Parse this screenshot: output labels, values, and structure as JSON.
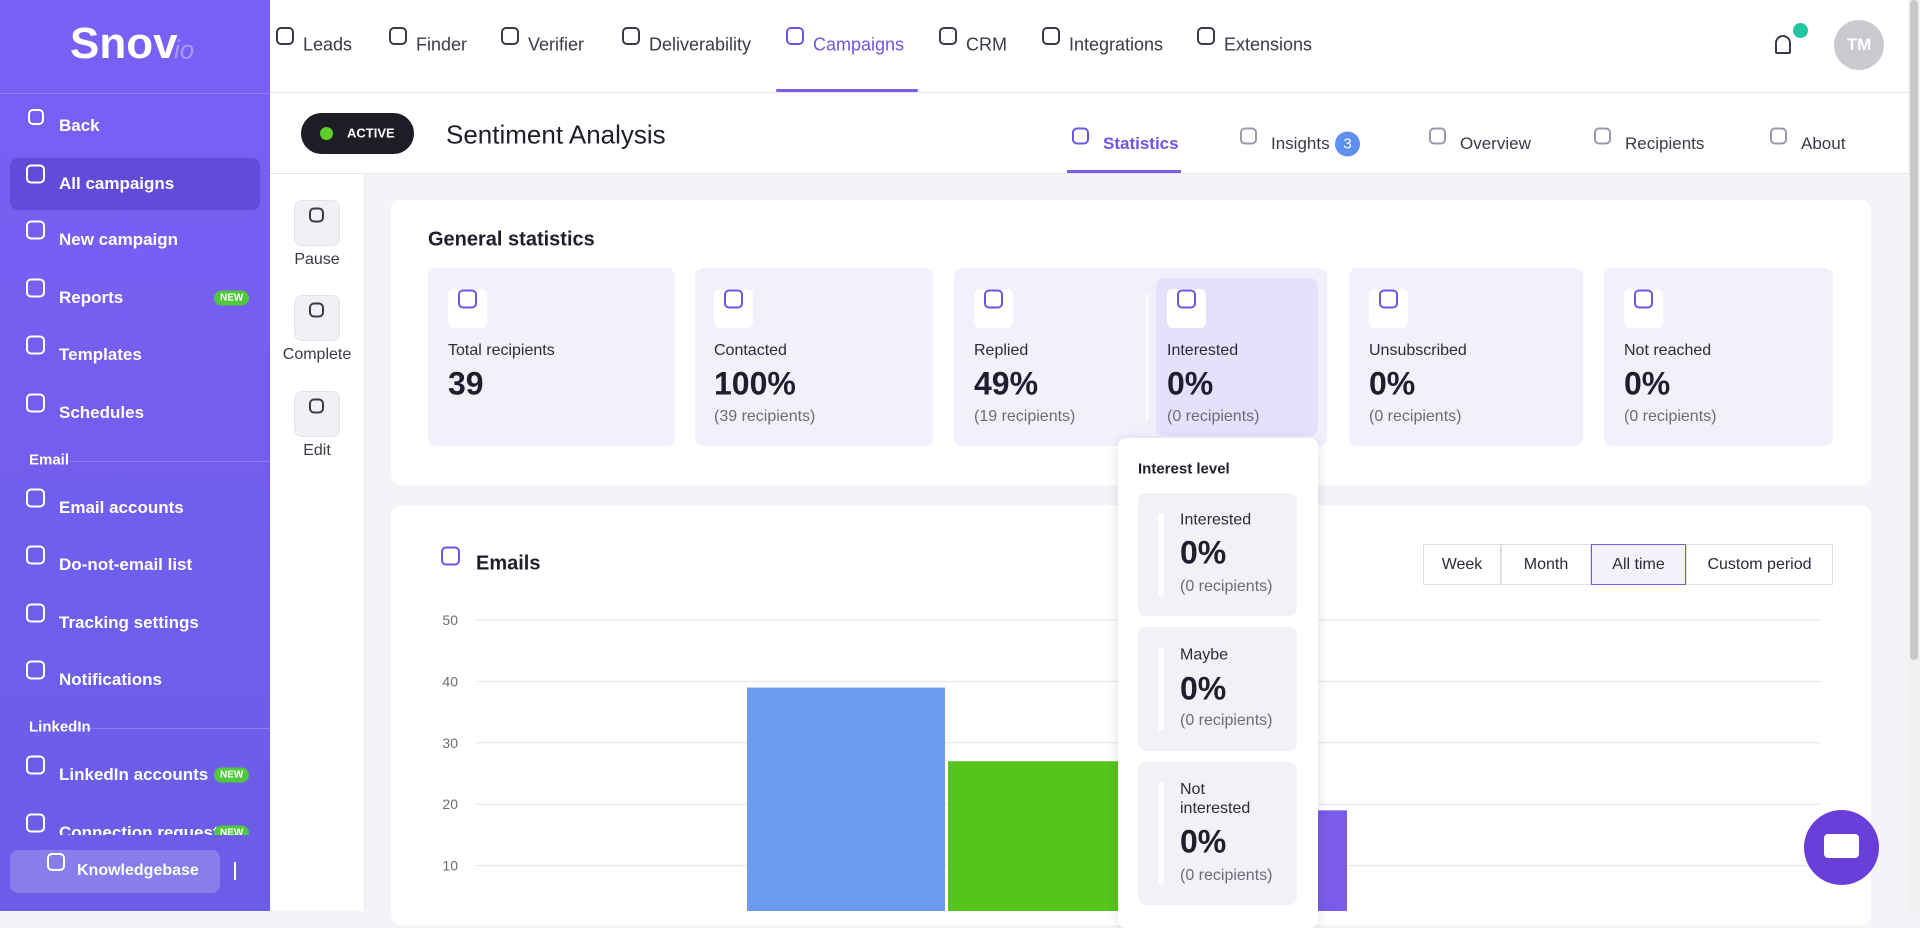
{
  "logo": {
    "main": "Snov",
    "suffix": "io"
  },
  "nav": [
    {
      "label": "Leads"
    },
    {
      "label": "Finder"
    },
    {
      "label": "Verifier"
    },
    {
      "label": "Deliverability"
    },
    {
      "label": "Campaigns",
      "active": true
    },
    {
      "label": "CRM"
    },
    {
      "label": "Integrations"
    },
    {
      "label": "Extensions"
    }
  ],
  "user": {
    "initials": "TM"
  },
  "sidebar": {
    "back": "Back",
    "items": [
      {
        "label": "All campaigns",
        "active": true
      },
      {
        "label": "New campaign"
      },
      {
        "label": "Reports",
        "badge": "NEW"
      },
      {
        "label": "Templates"
      },
      {
        "label": "Schedules"
      },
      {
        "section": "Email"
      },
      {
        "label": "Email accounts"
      },
      {
        "label": "Do-not-email list"
      },
      {
        "label": "Tracking settings"
      },
      {
        "label": "Notifications"
      },
      {
        "section": "LinkedIn"
      },
      {
        "label": "LinkedIn accounts",
        "badge": "NEW"
      },
      {
        "label": "Connection requests",
        "badge": "NEW"
      }
    ],
    "knowledgebase": "Knowledgebase"
  },
  "campaign": {
    "status": "ACTIVE",
    "name": "Sentiment Analysis"
  },
  "tabs": [
    {
      "label": "Statistics",
      "active": true
    },
    {
      "label": "Insights",
      "badge": "3"
    },
    {
      "label": "Overview"
    },
    {
      "label": "Recipients"
    },
    {
      "label": "About"
    }
  ],
  "actions": [
    "Pause",
    "Complete",
    "Edit"
  ],
  "general": {
    "title": "General statistics",
    "stats": [
      {
        "label": "Total recipients",
        "value": "39"
      },
      {
        "label": "Contacted",
        "value": "100%",
        "sub": "(39 recipients)"
      },
      {
        "label": "Replied",
        "value": "49%",
        "sub": "(19 recipients)"
      },
      {
        "label": "Interested",
        "value": "0%",
        "sub": "(0 recipients)"
      },
      {
        "label": "Unsubscribed",
        "value": "0%",
        "sub": "(0 recipients)"
      },
      {
        "label": "Not reached",
        "value": "0%",
        "sub": "(0 recipients)"
      }
    ]
  },
  "interest_popover": {
    "title": "Interest level",
    "levels": [
      {
        "label": "Interested",
        "value": "0%",
        "sub": "(0 recipients)"
      },
      {
        "label": "Maybe",
        "value": "0%",
        "sub": "(0 recipients)"
      },
      {
        "label": "Not interested",
        "value": "0%",
        "sub": "(0 recipients)"
      }
    ]
  },
  "emails": {
    "title": "Emails",
    "periods": [
      {
        "label": "Week"
      },
      {
        "label": "Month"
      },
      {
        "label": "All time",
        "active": true
      },
      {
        "label": "Custom period"
      }
    ],
    "chart": {
      "type": "bar",
      "ylim": [
        0,
        50
      ],
      "yticks": [
        10,
        20,
        30,
        40,
        50
      ],
      "values": [
        39,
        27,
        19
      ],
      "colors": [
        "#6b9cf2",
        "#57c41e",
        "#7b5ce8"
      ]
    }
  }
}
